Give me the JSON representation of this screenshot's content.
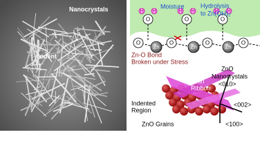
{
  "sem_image": {
    "label_top": "Nanocrystals",
    "label_center": "Indent"
  },
  "mechanism": {
    "moisture": "Moisture",
    "hydrolysis": [
      "Hydrolysis",
      "to Zn(OH)₂"
    ],
    "bond_break": [
      "Zn-O Bond",
      "Broken under Stress"
    ],
    "atoms": {
      "h": "H",
      "o": "O",
      "zn": "Zn"
    }
  },
  "structure": {
    "nanocrystals": [
      "ZnO",
      "Nanocrystals",
      "<010>"
    ],
    "ribbon": [
      "Thin",
      "Ribbon"
    ],
    "indented": [
      "Indented",
      "Region"
    ],
    "grains": "ZnO Grains",
    "dir_002": "<002>",
    "dir_100": "<100>"
  }
}
